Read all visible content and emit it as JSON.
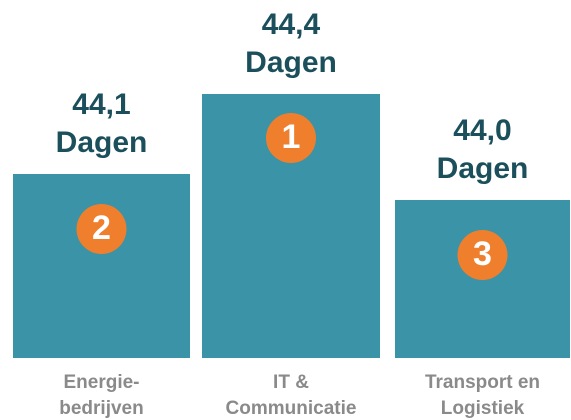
{
  "podium": [
    {
      "label": [
        "Energie-",
        "bedrijven"
      ],
      "value": "44,1",
      "unit": "Dagen",
      "rank": 2
    },
    {
      "label": [
        "IT &",
        "Communicatie"
      ],
      "value": "44,4",
      "unit": "Dagen",
      "rank": 1
    },
    {
      "label": [
        "Transport en",
        "Logistiek"
      ],
      "value": "44,0",
      "unit": "Dagen",
      "rank": 3
    }
  ]
}
